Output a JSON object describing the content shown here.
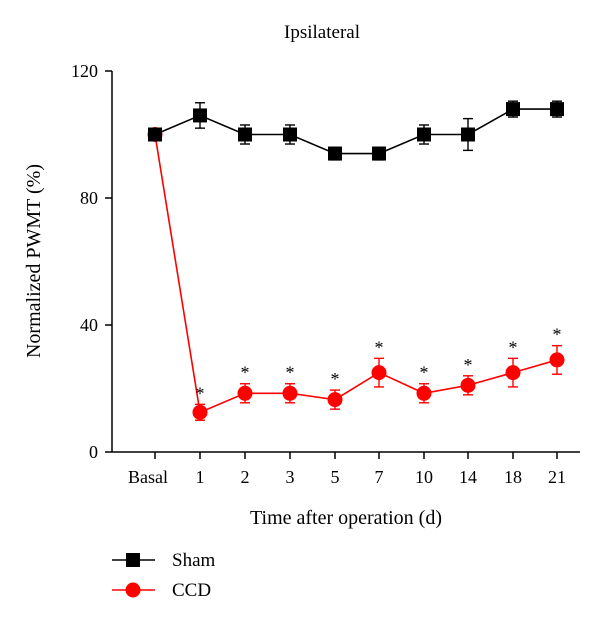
{
  "chart_data": {
    "type": "line",
    "title": "Ipsilateral",
    "xlabel": "Time after operation (d)",
    "ylabel": "Normalized PWMT (%)",
    "categories": [
      "Basal",
      "1",
      "2",
      "3",
      "5",
      "7",
      "10",
      "14",
      "18",
      "21"
    ],
    "ylim": [
      0,
      120
    ],
    "yticks": [
      0,
      40,
      80,
      120
    ],
    "series": [
      {
        "name": "Sham",
        "marker": "square",
        "color": "#000000",
        "values": [
          100,
          106,
          100,
          100,
          94,
          94,
          100,
          100,
          108,
          108
        ],
        "errors": [
          1,
          4,
          3,
          3,
          2,
          2,
          3,
          5,
          2.5,
          2.5
        ]
      },
      {
        "name": "CCD",
        "marker": "circle",
        "color": "#ff0000",
        "values": [
          100,
          12.5,
          18.5,
          18.5,
          16.5,
          25,
          18.5,
          21,
          25,
          29
        ],
        "errors": [
          1,
          2.5,
          3,
          3,
          3,
          4.5,
          3,
          3,
          4.5,
          4.5
        ],
        "significance": [
          "",
          "*",
          "*",
          "*",
          "*",
          "*",
          "*",
          "*",
          "*",
          "*"
        ]
      }
    ],
    "legend_position": "bottom-left"
  }
}
